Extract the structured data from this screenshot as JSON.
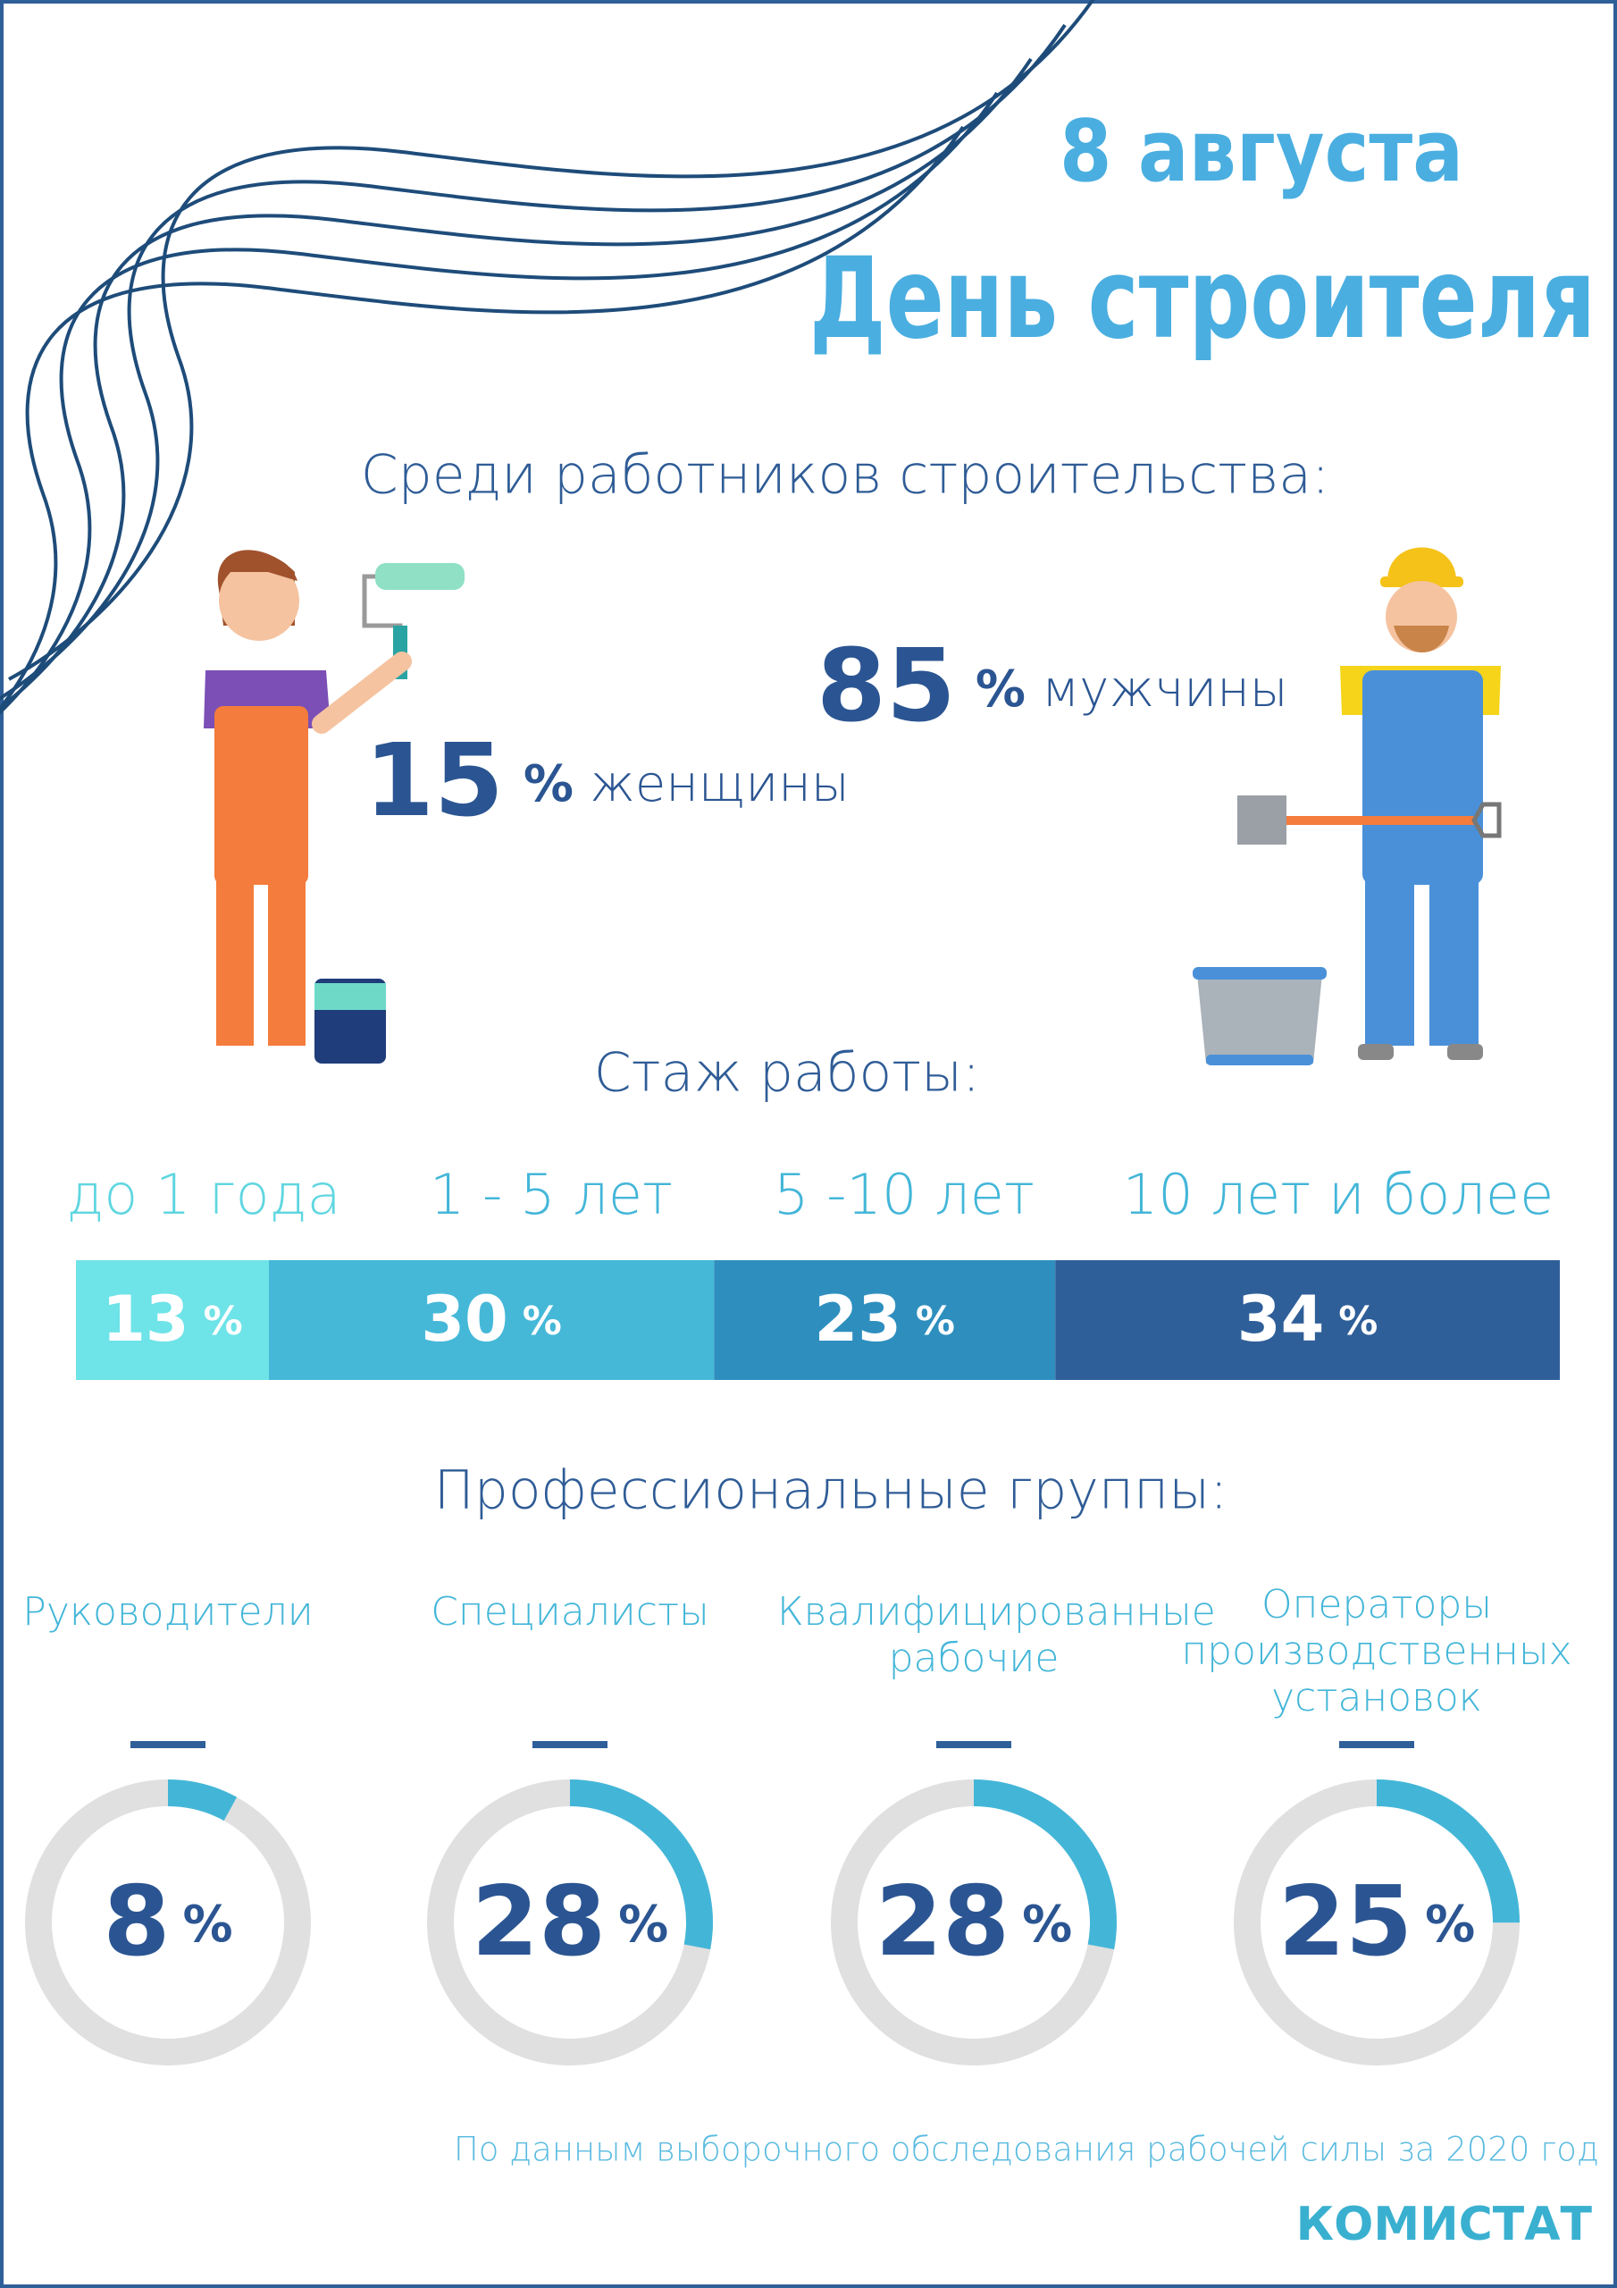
{
  "header": {
    "date": "8 августа",
    "title": "День строителя"
  },
  "gender": {
    "title": "Среди работников строительства:",
    "unit": "%",
    "items": [
      {
        "value": 15,
        "label": "женщины"
      },
      {
        "value": 85,
        "label": "мужчины"
      }
    ]
  },
  "experience": {
    "title": "Стаж работы:",
    "unit": "%",
    "categories": [
      "до 1 года",
      "1 - 5 лет",
      "5 -10 лет",
      "10 лет и более"
    ],
    "values": [
      13,
      30,
      23,
      34
    ],
    "colors": [
      "#6ee3e8",
      "#45b8d8",
      "#2e8fbf",
      "#2f5f99"
    ]
  },
  "professions": {
    "title": "Профессиональные группы:",
    "unit": "%",
    "categories": [
      "Руководители",
      "Специалисты",
      "Квалифицированные рабочие",
      "Операторы производственных установок"
    ],
    "values": [
      8,
      28,
      28,
      25
    ],
    "color": "#43b6d8"
  },
  "footer": {
    "source": "По данным выборочного обследования рабочей силы за 2020 год",
    "brand": "КОМИСТАТ"
  }
}
